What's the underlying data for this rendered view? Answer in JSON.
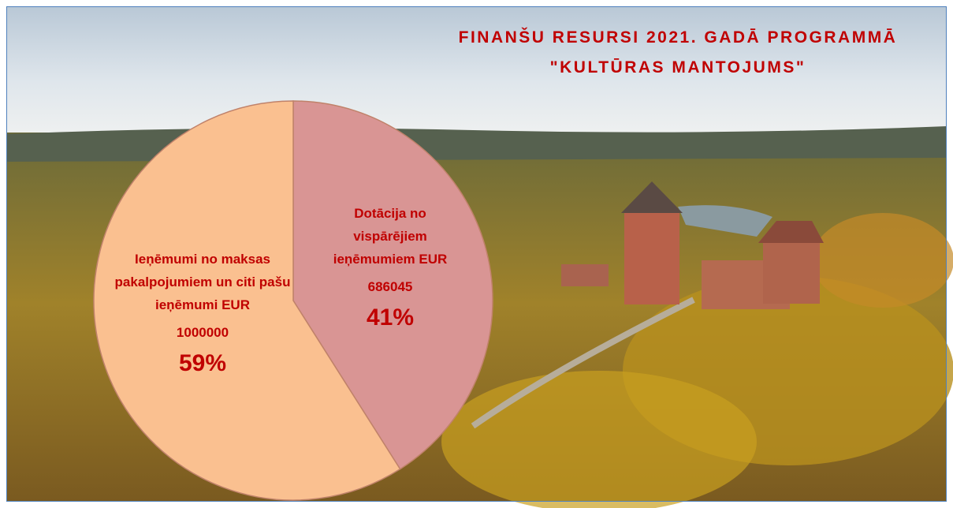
{
  "chart_data": {
    "type": "pie",
    "title": [
      "FINANŠU RESURSI 2021. GADĀ PROGRAMMĀ",
      "\"KULTŪRAS MANTOJUMS\""
    ],
    "categories": [
      "Dotācija no vispārējiem ieņēmumiem EUR",
      "Ieņēmumi no maksas pakalpojumiem un citi pašu ieņēmumi EUR"
    ],
    "amounts": [
      686045,
      1000000
    ],
    "values": [
      41,
      59
    ],
    "value_labels": [
      "41%",
      "59%"
    ],
    "colors": [
      "#d99594",
      "#fac090"
    ]
  }
}
